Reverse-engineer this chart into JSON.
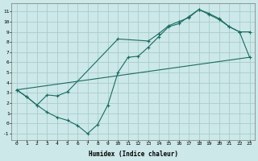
{
  "xlabel": "Humidex (Indice chaleur)",
  "bg_color": "#cce8e8",
  "grid_color": "#aacccc",
  "line_color": "#1a6b60",
  "xlim": [
    -0.5,
    23.5
  ],
  "ylim": [
    -1.6,
    11.8
  ],
  "xticks": [
    0,
    1,
    2,
    3,
    4,
    5,
    6,
    7,
    8,
    9,
    10,
    11,
    12,
    13,
    14,
    15,
    16,
    17,
    18,
    19,
    20,
    21,
    22,
    23
  ],
  "yticks": [
    -1,
    0,
    1,
    2,
    3,
    4,
    5,
    6,
    7,
    8,
    9,
    10,
    11
  ],
  "line1": [
    [
      0,
      3.3
    ],
    [
      23,
      6.5
    ]
  ],
  "line2": [
    [
      0,
      3.3
    ],
    [
      1,
      2.6
    ],
    [
      2,
      1.8
    ],
    [
      3,
      1.1
    ],
    [
      4,
      0.6
    ],
    [
      5,
      0.3
    ],
    [
      6,
      -0.2
    ],
    [
      7,
      -1.0
    ],
    [
      8,
      -0.1
    ],
    [
      9,
      1.8
    ],
    [
      10,
      5.0
    ],
    [
      11,
      6.5
    ],
    [
      12,
      6.6
    ],
    [
      13,
      7.5
    ],
    [
      14,
      8.5
    ],
    [
      15,
      9.5
    ],
    [
      16,
      9.8
    ],
    [
      17,
      10.5
    ],
    [
      18,
      11.2
    ],
    [
      19,
      10.7
    ],
    [
      20,
      10.2
    ],
    [
      21,
      9.5
    ],
    [
      22,
      9.0
    ],
    [
      23,
      9.0
    ]
  ],
  "line3": [
    [
      0,
      3.3
    ],
    [
      1,
      2.6
    ],
    [
      2,
      1.8
    ],
    [
      3,
      2.8
    ],
    [
      4,
      2.7
    ],
    [
      5,
      3.1
    ],
    [
      10,
      8.3
    ],
    [
      13,
      8.1
    ],
    [
      14,
      8.8
    ],
    [
      15,
      9.6
    ],
    [
      16,
      10.0
    ],
    [
      17,
      10.4
    ],
    [
      18,
      11.2
    ],
    [
      19,
      10.8
    ],
    [
      20,
      10.3
    ],
    [
      21,
      9.5
    ],
    [
      22,
      9.0
    ],
    [
      23,
      6.5
    ]
  ]
}
